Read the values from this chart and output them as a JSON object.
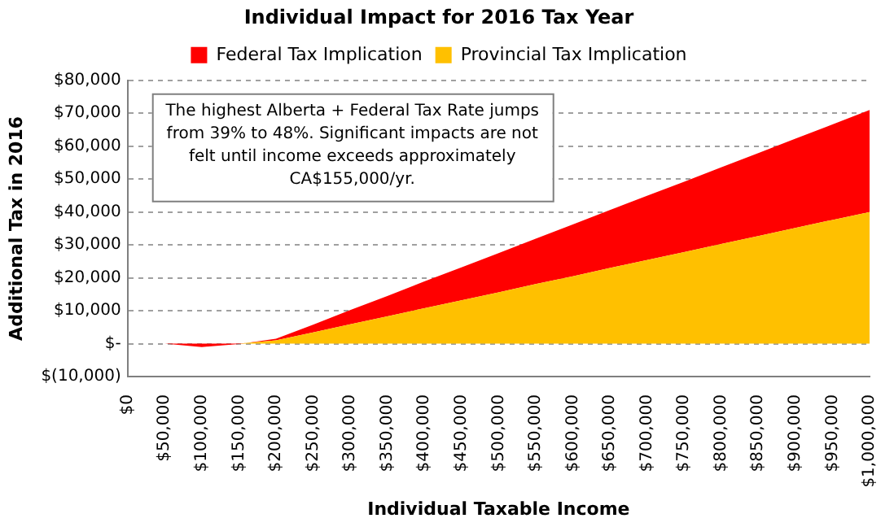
{
  "chart_data": {
    "type": "area",
    "title": "Individual Impact for 2016 Tax Year",
    "xlabel": "Individual Taxable Income",
    "ylabel": "Additional Tax in 2016",
    "categories": [
      "$0",
      "$50,000",
      "$100,000",
      "$150,000",
      "$200,000",
      "$250,000",
      "$300,000",
      "$350,000",
      "$400,000",
      "$450,000",
      "$500,000",
      "$550,000",
      "$600,000",
      "$650,000",
      "$700,000",
      "$750,000",
      "$800,000",
      "$850,000",
      "$900,000",
      "$950,000",
      "$1,000,000"
    ],
    "stacked": true,
    "series": [
      {
        "name": "Provincial Tax Implication",
        "color": "#ffc000",
        "values": [
          null,
          0,
          0,
          0,
          1000,
          3400,
          5900,
          8300,
          10800,
          13200,
          15600,
          18100,
          20500,
          23000,
          25400,
          27800,
          30300,
          32700,
          35200,
          37600,
          40000
        ]
      },
      {
        "name": "Federal Tax Implication",
        "color": "#ff0000",
        "values": [
          null,
          0,
          -1000,
          -100,
          500,
          2400,
          4300,
          6200,
          8100,
          10000,
          11900,
          13800,
          15700,
          17600,
          19500,
          21400,
          23300,
          25200,
          27100,
          29000,
          31000
        ]
      }
    ],
    "ylim": [
      -10000,
      80000
    ],
    "yticks": [
      {
        "value": -10000,
        "label": "$(10,000)"
      },
      {
        "value": 0,
        "label": "$-"
      },
      {
        "value": 10000,
        "label": "$10,000"
      },
      {
        "value": 20000,
        "label": "$20,000"
      },
      {
        "value": 30000,
        "label": "$30,000"
      },
      {
        "value": 40000,
        "label": "$40,000"
      },
      {
        "value": 50000,
        "label": "$50,000"
      },
      {
        "value": 60000,
        "label": "$60,000"
      },
      {
        "value": 70000,
        "label": "$70,000"
      },
      {
        "value": 80000,
        "label": "$80,000"
      }
    ],
    "grid": "y",
    "legend": "top",
    "annotations": [
      "The highest Alberta + Federal Tax Rate jumps from 39% to 48%. Significant impacts are not felt until income exceeds approximately CA$155,000/yr."
    ]
  }
}
